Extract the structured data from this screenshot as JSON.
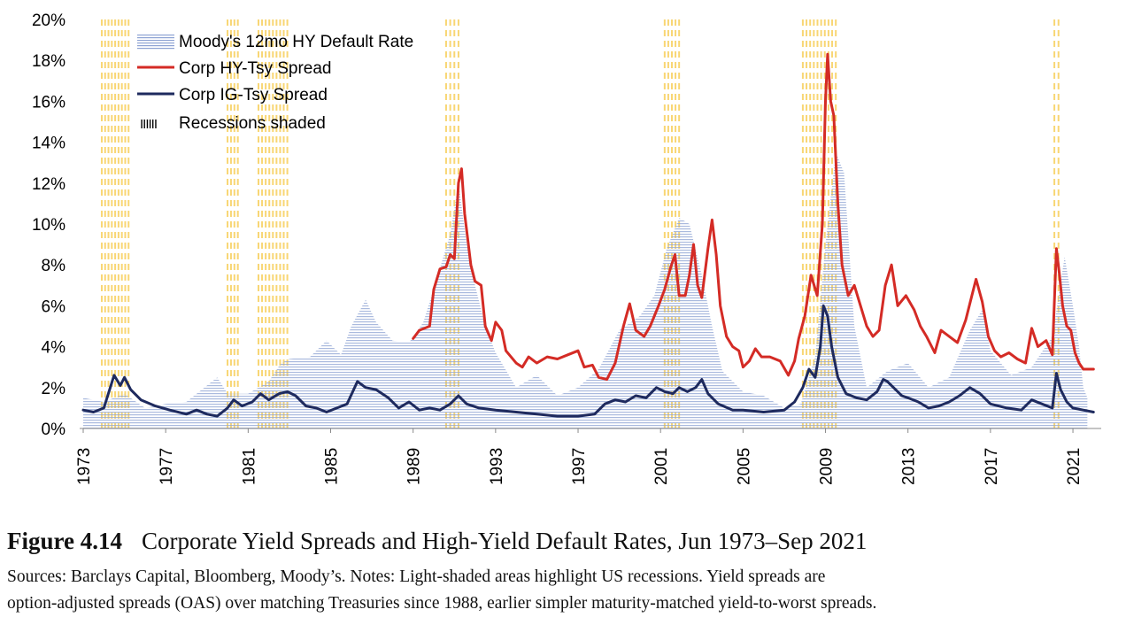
{
  "figure": {
    "number": "Figure 4.14",
    "title": "Corporate Yield Spreads and High-Yield Default Rates, Jun 1973–Sep 2021",
    "note_line1": "Sources: Barclays Capital, Bloomberg, Moody’s. Notes: Light-shaded areas highlight US recessions. Yield spreads are",
    "note_line2": "option-adjusted spreads (OAS) over matching Treasuries since 1988, earlier simpler maturity-matched yield-to-worst spreads."
  },
  "legend": {
    "default_rate": "Moody's 12mo HY Default Rate",
    "hy_spread": "Corp HY-Tsy Spread",
    "ig_spread": "Corp IG-Tsy Spread",
    "recessions_marker": "IIIIII",
    "recessions": "Recessions shaded"
  },
  "colors": {
    "hy": "#d42b25",
    "ig": "#1e2a5e",
    "default_rate": "#8ea3d3",
    "recession": "#f7cf5c"
  },
  "chart_data": {
    "type": "line",
    "y_ticks": [
      "0%",
      "2%",
      "4%",
      "6%",
      "8%",
      "10%",
      "12%",
      "14%",
      "16%",
      "18%",
      "20%"
    ],
    "x_ticks": [
      "1973",
      "1977",
      "1981",
      "1985",
      "1989",
      "1993",
      "1997",
      "2001",
      "2005",
      "2009",
      "2013",
      "2017",
      "2021"
    ],
    "xlim": [
      1973,
      2022.2
    ],
    "ylim": [
      0,
      20
    ],
    "grid": false,
    "legend_position": "top-left",
    "recessions": [
      [
        1973.9,
        1975.2
      ],
      [
        1980.0,
        1980.5
      ],
      [
        1981.5,
        1982.9
      ],
      [
        1990.6,
        1991.2
      ],
      [
        2001.2,
        2001.9
      ],
      [
        2007.9,
        2009.5
      ],
      [
        2020.1,
        2020.3
      ]
    ],
    "series": [
      {
        "name": "Moody's 12mo HY Default Rate",
        "style": "hatched-area",
        "points": [
          [
            1973.0,
            1.5
          ],
          [
            1974.0,
            1.3
          ],
          [
            1975.0,
            1.7
          ],
          [
            1976.0,
            1.0
          ],
          [
            1977.0,
            1.2
          ],
          [
            1978.0,
            1.3
          ],
          [
            1979.0,
            2.1
          ],
          [
            1979.5,
            2.5
          ],
          [
            1980.0,
            1.7
          ],
          [
            1981.0,
            1.7
          ],
          [
            1982.0,
            2.3
          ],
          [
            1982.6,
            3.2
          ],
          [
            1983.0,
            3.4
          ],
          [
            1984.0,
            3.5
          ],
          [
            1984.8,
            4.3
          ],
          [
            1985.5,
            3.6
          ],
          [
            1986.0,
            5.0
          ],
          [
            1986.7,
            6.3
          ],
          [
            1987.2,
            5.2
          ],
          [
            1988.0,
            4.3
          ],
          [
            1988.8,
            4.2
          ],
          [
            1989.5,
            5.2
          ],
          [
            1990.2,
            7.5
          ],
          [
            1990.8,
            9.5
          ],
          [
            1991.2,
            12.0
          ],
          [
            1991.6,
            9.0
          ],
          [
            1992.0,
            7.0
          ],
          [
            1992.5,
            5.0
          ],
          [
            1993.0,
            3.7
          ],
          [
            1994.0,
            2.0
          ],
          [
            1995.0,
            2.6
          ],
          [
            1996.0,
            1.6
          ],
          [
            1997.0,
            2.0
          ],
          [
            1998.0,
            2.9
          ],
          [
            1999.0,
            4.8
          ],
          [
            2000.0,
            5.5
          ],
          [
            2000.7,
            6.5
          ],
          [
            2001.3,
            8.8
          ],
          [
            2001.9,
            10.3
          ],
          [
            2002.4,
            10.0
          ],
          [
            2003.0,
            7.5
          ],
          [
            2003.5,
            5.0
          ],
          [
            2004.0,
            2.8
          ],
          [
            2005.0,
            1.8
          ],
          [
            2006.0,
            1.6
          ],
          [
            2007.0,
            1.0
          ],
          [
            2007.8,
            1.2
          ],
          [
            2008.5,
            3.5
          ],
          [
            2009.0,
            9.0
          ],
          [
            2009.5,
            13.5
          ],
          [
            2009.9,
            12.5
          ],
          [
            2010.4,
            5.0
          ],
          [
            2011.0,
            2.0
          ],
          [
            2012.0,
            2.8
          ],
          [
            2013.0,
            3.2
          ],
          [
            2014.0,
            2.0
          ],
          [
            2015.0,
            2.5
          ],
          [
            2016.0,
            4.8
          ],
          [
            2016.6,
            5.8
          ],
          [
            2017.0,
            3.8
          ],
          [
            2018.0,
            2.6
          ],
          [
            2019.0,
            3.0
          ],
          [
            2020.0,
            4.5
          ],
          [
            2020.6,
            8.4
          ],
          [
            2021.0,
            6.0
          ],
          [
            2021.3,
            4.0
          ],
          [
            2021.5,
            2.0
          ],
          [
            2021.7,
            1.5
          ]
        ]
      },
      {
        "name": "Corp HY-Tsy Spread",
        "style": "line",
        "points": [
          [
            1989.0,
            4.4
          ],
          [
            1989.3,
            4.8
          ],
          [
            1989.8,
            5.0
          ],
          [
            1990.0,
            6.8
          ],
          [
            1990.3,
            7.8
          ],
          [
            1990.6,
            7.9
          ],
          [
            1990.8,
            8.5
          ],
          [
            1991.0,
            8.3
          ],
          [
            1991.2,
            12.0
          ],
          [
            1991.35,
            12.7
          ],
          [
            1991.5,
            10.5
          ],
          [
            1991.8,
            8.0
          ],
          [
            1992.0,
            7.2
          ],
          [
            1992.3,
            7.0
          ],
          [
            1992.5,
            5.0
          ],
          [
            1992.8,
            4.3
          ],
          [
            1993.0,
            5.2
          ],
          [
            1993.3,
            4.8
          ],
          [
            1993.5,
            3.8
          ],
          [
            1994.0,
            3.2
          ],
          [
            1994.3,
            3.0
          ],
          [
            1994.6,
            3.5
          ],
          [
            1995.0,
            3.2
          ],
          [
            1995.5,
            3.5
          ],
          [
            1996.0,
            3.4
          ],
          [
            1996.5,
            3.6
          ],
          [
            1997.0,
            3.8
          ],
          [
            1997.3,
            3.0
          ],
          [
            1997.7,
            3.1
          ],
          [
            1998.0,
            2.5
          ],
          [
            1998.4,
            2.4
          ],
          [
            1998.8,
            3.2
          ],
          [
            1999.2,
            5.0
          ],
          [
            1999.5,
            6.1
          ],
          [
            1999.8,
            4.8
          ],
          [
            2000.2,
            4.5
          ],
          [
            2000.5,
            5.0
          ],
          [
            2000.9,
            6.0
          ],
          [
            2001.2,
            6.8
          ],
          [
            2001.5,
            7.9
          ],
          [
            2001.7,
            8.5
          ],
          [
            2001.9,
            6.5
          ],
          [
            2002.2,
            6.5
          ],
          [
            2002.4,
            7.5
          ],
          [
            2002.6,
            9.0
          ],
          [
            2002.8,
            7.0
          ],
          [
            2003.0,
            6.4
          ],
          [
            2003.3,
            8.8
          ],
          [
            2003.5,
            10.2
          ],
          [
            2003.7,
            8.5
          ],
          [
            2003.9,
            6.0
          ],
          [
            2004.2,
            4.5
          ],
          [
            2004.5,
            4.0
          ],
          [
            2004.8,
            3.8
          ],
          [
            2005.0,
            3.0
          ],
          [
            2005.3,
            3.3
          ],
          [
            2005.6,
            3.9
          ],
          [
            2005.9,
            3.5
          ],
          [
            2006.3,
            3.5
          ],
          [
            2006.8,
            3.3
          ],
          [
            2007.2,
            2.6
          ],
          [
            2007.5,
            3.3
          ],
          [
            2007.7,
            4.4
          ],
          [
            2008.0,
            5.5
          ],
          [
            2008.3,
            7.5
          ],
          [
            2008.6,
            6.5
          ],
          [
            2008.85,
            10.0
          ],
          [
            2009.0,
            16.0
          ],
          [
            2009.1,
            18.3
          ],
          [
            2009.25,
            16.0
          ],
          [
            2009.4,
            15.3
          ],
          [
            2009.6,
            11.0
          ],
          [
            2009.8,
            8.0
          ],
          [
            2010.1,
            6.5
          ],
          [
            2010.4,
            7.0
          ],
          [
            2010.7,
            6.0
          ],
          [
            2011.0,
            5.0
          ],
          [
            2011.3,
            4.5
          ],
          [
            2011.6,
            4.8
          ],
          [
            2011.9,
            7.0
          ],
          [
            2012.2,
            8.0
          ],
          [
            2012.5,
            6.0
          ],
          [
            2012.9,
            6.5
          ],
          [
            2013.3,
            5.8
          ],
          [
            2013.6,
            5.0
          ],
          [
            2013.9,
            4.5
          ],
          [
            2014.3,
            3.7
          ],
          [
            2014.6,
            4.8
          ],
          [
            2015.0,
            4.5
          ],
          [
            2015.4,
            4.2
          ],
          [
            2015.8,
            5.3
          ],
          [
            2016.1,
            6.5
          ],
          [
            2016.3,
            7.3
          ],
          [
            2016.6,
            6.2
          ],
          [
            2016.9,
            4.5
          ],
          [
            2017.2,
            3.8
          ],
          [
            2017.5,
            3.5
          ],
          [
            2017.9,
            3.7
          ],
          [
            2018.3,
            3.4
          ],
          [
            2018.7,
            3.2
          ],
          [
            2019.0,
            4.9
          ],
          [
            2019.3,
            4.0
          ],
          [
            2019.7,
            4.3
          ],
          [
            2020.0,
            3.6
          ],
          [
            2020.2,
            8.8
          ],
          [
            2020.35,
            7.5
          ],
          [
            2020.5,
            6.0
          ],
          [
            2020.7,
            5.0
          ],
          [
            2020.9,
            4.8
          ],
          [
            2021.1,
            3.7
          ],
          [
            2021.3,
            3.2
          ],
          [
            2021.5,
            2.9
          ],
          [
            2021.7,
            2.9
          ],
          [
            2022.0,
            2.9
          ]
        ]
      },
      {
        "name": "Corp IG-Tsy Spread",
        "style": "line",
        "points": [
          [
            1973.0,
            0.9
          ],
          [
            1973.5,
            0.8
          ],
          [
            1974.0,
            1.0
          ],
          [
            1974.5,
            2.6
          ],
          [
            1974.8,
            2.1
          ],
          [
            1975.0,
            2.5
          ],
          [
            1975.3,
            1.9
          ],
          [
            1975.8,
            1.4
          ],
          [
            1976.5,
            1.1
          ],
          [
            1977.2,
            0.9
          ],
          [
            1978.0,
            0.7
          ],
          [
            1978.5,
            0.9
          ],
          [
            1979.0,
            0.7
          ],
          [
            1979.5,
            0.6
          ],
          [
            1980.0,
            1.0
          ],
          [
            1980.3,
            1.4
          ],
          [
            1980.7,
            1.1
          ],
          [
            1981.2,
            1.3
          ],
          [
            1981.6,
            1.7
          ],
          [
            1982.0,
            1.4
          ],
          [
            1982.5,
            1.7
          ],
          [
            1982.9,
            1.8
          ],
          [
            1983.3,
            1.6
          ],
          [
            1983.8,
            1.1
          ],
          [
            1984.3,
            1.0
          ],
          [
            1984.8,
            0.8
          ],
          [
            1985.3,
            1.0
          ],
          [
            1985.8,
            1.2
          ],
          [
            1986.3,
            2.3
          ],
          [
            1986.7,
            2.0
          ],
          [
            1987.2,
            1.9
          ],
          [
            1987.8,
            1.5
          ],
          [
            1988.3,
            1.0
          ],
          [
            1988.8,
            1.3
          ],
          [
            1989.3,
            0.9
          ],
          [
            1989.8,
            1.0
          ],
          [
            1990.3,
            0.9
          ],
          [
            1990.8,
            1.2
          ],
          [
            1991.2,
            1.6
          ],
          [
            1991.6,
            1.2
          ],
          [
            1992.2,
            1.0
          ],
          [
            1993.0,
            0.9
          ],
          [
            1994.0,
            0.8
          ],
          [
            1995.0,
            0.7
          ],
          [
            1996.0,
            0.6
          ],
          [
            1997.0,
            0.6
          ],
          [
            1997.8,
            0.7
          ],
          [
            1998.3,
            1.2
          ],
          [
            1998.8,
            1.4
          ],
          [
            1999.3,
            1.3
          ],
          [
            1999.8,
            1.6
          ],
          [
            2000.3,
            1.5
          ],
          [
            2000.8,
            2.0
          ],
          [
            2001.2,
            1.8
          ],
          [
            2001.6,
            1.7
          ],
          [
            2001.9,
            2.0
          ],
          [
            2002.3,
            1.8
          ],
          [
            2002.7,
            2.0
          ],
          [
            2003.0,
            2.4
          ],
          [
            2003.3,
            1.7
          ],
          [
            2003.8,
            1.2
          ],
          [
            2004.5,
            0.9
          ],
          [
            2005.0,
            0.9
          ],
          [
            2006.0,
            0.8
          ],
          [
            2007.0,
            0.9
          ],
          [
            2007.5,
            1.3
          ],
          [
            2007.9,
            2.0
          ],
          [
            2008.2,
            2.9
          ],
          [
            2008.5,
            2.5
          ],
          [
            2008.75,
            4.0
          ],
          [
            2008.9,
            6.0
          ],
          [
            2009.1,
            5.5
          ],
          [
            2009.3,
            4.0
          ],
          [
            2009.6,
            2.5
          ],
          [
            2010.0,
            1.7
          ],
          [
            2010.5,
            1.5
          ],
          [
            2011.0,
            1.4
          ],
          [
            2011.5,
            1.8
          ],
          [
            2011.8,
            2.4
          ],
          [
            2012.0,
            2.3
          ],
          [
            2012.3,
            2.0
          ],
          [
            2012.7,
            1.6
          ],
          [
            2013.0,
            1.5
          ],
          [
            2013.5,
            1.3
          ],
          [
            2014.0,
            1.0
          ],
          [
            2014.5,
            1.1
          ],
          [
            2015.0,
            1.3
          ],
          [
            2015.5,
            1.6
          ],
          [
            2016.0,
            2.0
          ],
          [
            2016.5,
            1.7
          ],
          [
            2017.0,
            1.2
          ],
          [
            2017.8,
            1.0
          ],
          [
            2018.5,
            0.9
          ],
          [
            2019.0,
            1.4
          ],
          [
            2019.5,
            1.2
          ],
          [
            2020.0,
            1.0
          ],
          [
            2020.2,
            2.7
          ],
          [
            2020.4,
            1.9
          ],
          [
            2020.7,
            1.3
          ],
          [
            2021.0,
            1.0
          ],
          [
            2021.5,
            0.9
          ],
          [
            2022.0,
            0.8
          ]
        ]
      }
    ]
  }
}
